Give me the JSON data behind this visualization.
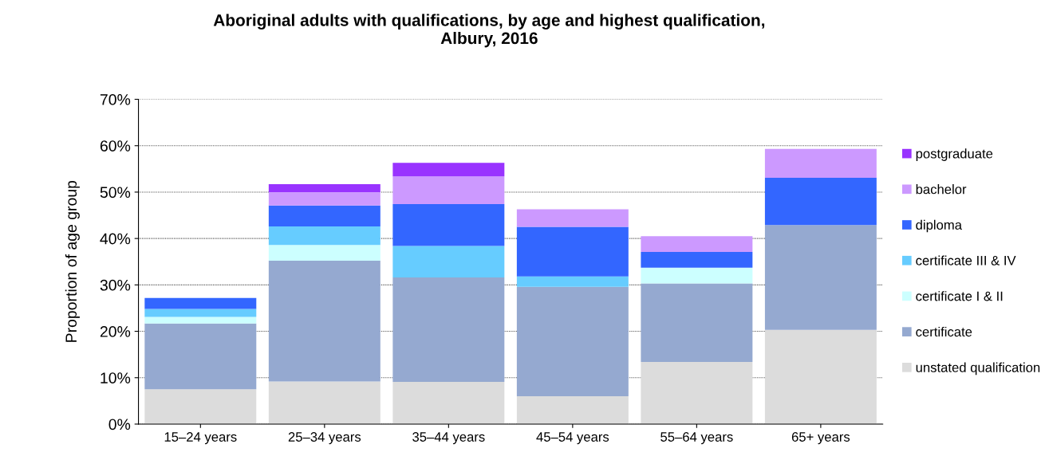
{
  "chart_data": {
    "type": "bar",
    "stacked": true,
    "title": "Aboriginal adults with qualifications, by age and highest qualification,\nAlbury, 2016",
    "ylabel": "Proportion of age group",
    "categories": [
      "15–24 years",
      "25–34 years",
      "35–44 years",
      "45–54 years",
      "55–64 years",
      "65+ years"
    ],
    "series": [
      {
        "name": "unstated qualification",
        "color": "#dcdcdc",
        "values": [
          7.5,
          9.2,
          9.1,
          6.0,
          13.4,
          20.3
        ]
      },
      {
        "name": "certificate",
        "color": "#95a9d0",
        "values": [
          14.2,
          26.0,
          22.5,
          23.6,
          16.9,
          22.6
        ]
      },
      {
        "name": "certificate I & II",
        "color": "#ccffff",
        "values": [
          1.4,
          3.4,
          0,
          0,
          3.4,
          0
        ]
      },
      {
        "name": "certificate III & IV",
        "color": "#66ccff",
        "values": [
          1.7,
          4.0,
          6.8,
          2.2,
          0,
          0
        ]
      },
      {
        "name": "diploma",
        "color": "#3366ff",
        "values": [
          2.4,
          4.5,
          9.0,
          10.7,
          3.4,
          10.2
        ]
      },
      {
        "name": "bachelor",
        "color": "#cc99ff",
        "values": [
          0,
          2.9,
          6.0,
          3.8,
          3.4,
          6.2
        ]
      },
      {
        "name": "postgraduate",
        "color": "#9933ff",
        "values": [
          0,
          1.7,
          2.9,
          0,
          0,
          0
        ]
      }
    ],
    "ylim": [
      0,
      70
    ],
    "yticks": [
      {
        "value": 0,
        "label": "0%"
      },
      {
        "value": 10,
        "label": "10%"
      },
      {
        "value": 20,
        "label": "20%"
      },
      {
        "value": 30,
        "label": "30%"
      },
      {
        "value": 40,
        "label": "40%"
      },
      {
        "value": 50,
        "label": "50%"
      },
      {
        "value": 60,
        "label": "60%"
      },
      {
        "value": 70,
        "label": "70%"
      }
    ],
    "grid": "y",
    "legend": "right"
  }
}
